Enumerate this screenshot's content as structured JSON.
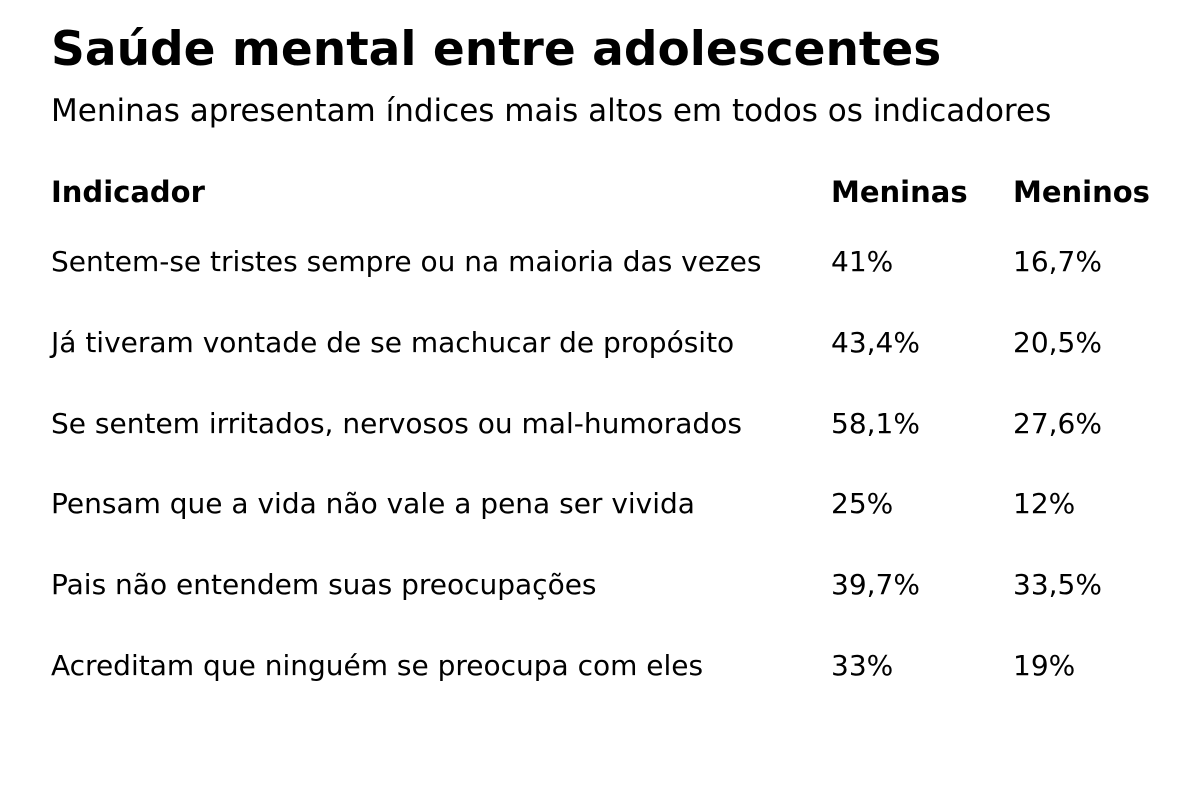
{
  "header": {
    "title": "Saúde mental entre adolescentes",
    "subtitle": "Meninas apresentam índices mais altos em todos os indicadores"
  },
  "table": {
    "columns": [
      "Indicador",
      "Meninas",
      "Meninos"
    ],
    "rows": [
      [
        "Sentem-se tristes sempre ou na maioria das vezes",
        "41%",
        "16,7%"
      ],
      [
        "Já tiveram vontade de se machucar de propósito",
        "43,4%",
        "20,5%"
      ],
      [
        "Se sentem irritados, nervosos ou mal-humorados",
        "58,1%",
        "27,6%"
      ],
      [
        "Pensam que a vida não vale a pena ser vivida",
        "25%",
        "12%"
      ],
      [
        "Pais não entendem suas preocupações",
        "39,7%",
        "33,5%"
      ],
      [
        "Acreditam que ninguém se preocupa com eles",
        "33%",
        "19%"
      ]
    ]
  }
}
